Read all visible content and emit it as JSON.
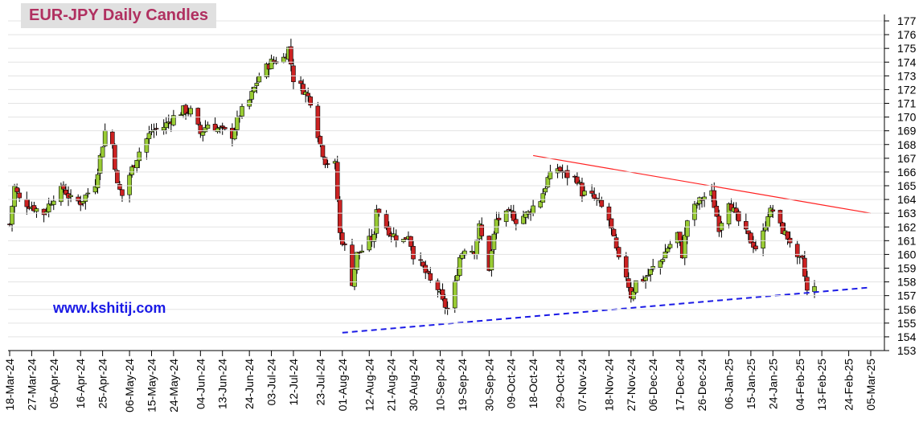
{
  "title": "EUR-JPY Daily  Candles",
  "watermark": "www.kshitij.com",
  "colors": {
    "up_body": "#99cc33",
    "down_body": "#cc2222",
    "wick": "#000000",
    "resistance": "#ff2020",
    "support": "#1a1ae6",
    "title_text": "#b03060",
    "title_bg": "#e0e0e0",
    "grid": "#e3e3e3"
  },
  "chart_data": {
    "type": "candlestick",
    "title": "EUR-JPY Daily  Candles",
    "xlabel": "",
    "ylabel": "",
    "x_range": [
      "2024-03-18",
      "2025-03-05"
    ],
    "ylim": [
      153,
      177
    ],
    "y_ticks": [
      153,
      154,
      155,
      156,
      157,
      158,
      159,
      160,
      161,
      162,
      163,
      164,
      165,
      166,
      167,
      168,
      169,
      170,
      171,
      172,
      173,
      174,
      175,
      176,
      177
    ],
    "x_ticks": [
      "18-Mar-24",
      "27-Mar-24",
      "05-Apr-24",
      "16-Apr-24",
      "25-Apr-24",
      "06-May-24",
      "15-May-24",
      "24-May-24",
      "04-Jun-24",
      "13-Jun-24",
      "24-Jun-24",
      "03-Jul-24",
      "12-Jul-24",
      "23-Jul-24",
      "01-Aug-24",
      "12-Aug-24",
      "21-Aug-24",
      "30-Aug-24",
      "10-Sep-24",
      "19-Sep-24",
      "30-Sep-24",
      "09-Oct-24",
      "18-Oct-24",
      "29-Oct-24",
      "07-Nov-24",
      "18-Nov-24",
      "27-Nov-24",
      "06-Dec-24",
      "17-Dec-24",
      "26-Dec-24",
      "06-Jan-25",
      "15-Jan-25",
      "24-Jan-25",
      "04-Feb-25",
      "13-Feb-25",
      "24-Feb-25",
      "05-Mar-25"
    ],
    "grid": false,
    "keypoints": [
      [
        "2024-03-18",
        162.2
      ],
      [
        "2024-03-20",
        164.9
      ],
      [
        "2024-03-22",
        164.0
      ],
      [
        "2024-03-27",
        163.5
      ],
      [
        "2024-04-01",
        163.0
      ],
      [
        "2024-04-05",
        164.2
      ],
      [
        "2024-04-09",
        164.8
      ],
      [
        "2024-04-12",
        164.0
      ],
      [
        "2024-04-16",
        163.8
      ],
      [
        "2024-04-22",
        165.2
      ],
      [
        "2024-04-26",
        169.0
      ],
      [
        "2024-04-29",
        168.0
      ],
      [
        "2024-05-01",
        165.0
      ],
      [
        "2024-05-03",
        164.3
      ],
      [
        "2024-05-06",
        165.8
      ],
      [
        "2024-05-10",
        167.5
      ],
      [
        "2024-05-15",
        169.0
      ],
      [
        "2024-05-20",
        169.3
      ],
      [
        "2024-05-24",
        170.0
      ],
      [
        "2024-05-28",
        170.5
      ],
      [
        "2024-05-31",
        170.4
      ],
      [
        "2024-06-04",
        168.8
      ],
      [
        "2024-06-07",
        169.5
      ],
      [
        "2024-06-13",
        169.0
      ],
      [
        "2024-06-17",
        168.7
      ],
      [
        "2024-06-20",
        170.2
      ],
      [
        "2024-06-24",
        171.2
      ],
      [
        "2024-06-28",
        173.0
      ],
      [
        "2024-07-03",
        174.0
      ],
      [
        "2024-07-08",
        174.3
      ],
      [
        "2024-07-10",
        175.0
      ],
      [
        "2024-07-12",
        172.8
      ],
      [
        "2024-07-16",
        172.0
      ],
      [
        "2024-07-19",
        171.2
      ],
      [
        "2024-07-23",
        168.0
      ],
      [
        "2024-07-25",
        166.8
      ],
      [
        "2024-07-29",
        166.5
      ],
      [
        "2024-07-31",
        161.5
      ],
      [
        "2024-08-02",
        160.5
      ],
      [
        "2024-08-05",
        158.0
      ],
      [
        "2024-08-07",
        160.0
      ],
      [
        "2024-08-09",
        160.3
      ],
      [
        "2024-08-12",
        161.0
      ],
      [
        "2024-08-14",
        161.2
      ],
      [
        "2024-08-15",
        163.5
      ],
      [
        "2024-08-19",
        162.0
      ],
      [
        "2024-08-21",
        161.5
      ],
      [
        "2024-08-26",
        161.0
      ],
      [
        "2024-08-28",
        161.5
      ],
      [
        "2024-08-30",
        160.0
      ],
      [
        "2024-09-03",
        159.0
      ],
      [
        "2024-09-06",
        158.0
      ],
      [
        "2024-09-09",
        157.5
      ],
      [
        "2024-09-11",
        156.5
      ],
      [
        "2024-09-13",
        156.0
      ],
      [
        "2024-09-16",
        157.8
      ],
      [
        "2024-09-18",
        159.8
      ],
      [
        "2024-09-20",
        160.5
      ],
      [
        "2024-09-24",
        160.3
      ],
      [
        "2024-09-26",
        162.0
      ],
      [
        "2024-09-30",
        159.0
      ],
      [
        "2024-10-03",
        162.5
      ],
      [
        "2024-10-09",
        163.0
      ],
      [
        "2024-10-11",
        162.5
      ],
      [
        "2024-10-16",
        163.0
      ],
      [
        "2024-10-18",
        163.5
      ],
      [
        "2024-10-21",
        164.0
      ],
      [
        "2024-10-24",
        165.5
      ],
      [
        "2024-10-28",
        166.3
      ],
      [
        "2024-10-31",
        165.8
      ],
      [
        "2024-11-05",
        165.5
      ],
      [
        "2024-11-07",
        164.5
      ],
      [
        "2024-11-11",
        164.2
      ],
      [
        "2024-11-14",
        163.7
      ],
      [
        "2024-11-18",
        162.5
      ],
      [
        "2024-11-20",
        161.0
      ],
      [
        "2024-11-22",
        159.5
      ],
      [
        "2024-11-25",
        158.5
      ],
      [
        "2024-11-27",
        157.0
      ],
      [
        "2024-11-29",
        158.0
      ],
      [
        "2024-12-02",
        158.2
      ],
      [
        "2024-12-04",
        158.5
      ],
      [
        "2024-12-06",
        159.0
      ],
      [
        "2024-12-09",
        159.5
      ],
      [
        "2024-12-12",
        160.5
      ],
      [
        "2024-12-16",
        161.5
      ],
      [
        "2024-12-18",
        160.0
      ],
      [
        "2024-12-20",
        162.5
      ],
      [
        "2024-12-24",
        163.7
      ],
      [
        "2024-12-27",
        164.2
      ],
      [
        "2024-12-30",
        164.4
      ],
      [
        "2025-01-02",
        162.0
      ],
      [
        "2025-01-06",
        164.0
      ],
      [
        "2025-01-09",
        162.7
      ],
      [
        "2025-01-13",
        161.5
      ],
      [
        "2025-01-15",
        161.0
      ],
      [
        "2025-01-17",
        160.5
      ],
      [
        "2025-01-20",
        161.5
      ],
      [
        "2025-01-22",
        163.0
      ],
      [
        "2025-01-24",
        163.2
      ],
      [
        "2025-01-27",
        162.0
      ],
      [
        "2025-01-29",
        161.5
      ],
      [
        "2025-01-31",
        161.0
      ],
      [
        "2025-02-03",
        159.5
      ],
      [
        "2025-02-05",
        159.5
      ],
      [
        "2025-02-07",
        157.3
      ],
      [
        "2025-02-10",
        157.5
      ]
    ],
    "resistance_line": {
      "from": [
        "2024-10-18",
        167.2
      ],
      "to": [
        "2025-03-05",
        163.0
      ]
    },
    "support_line": {
      "from": [
        "2024-08-01",
        154.3
      ],
      "to": [
        "2025-03-05",
        157.6
      ]
    }
  }
}
